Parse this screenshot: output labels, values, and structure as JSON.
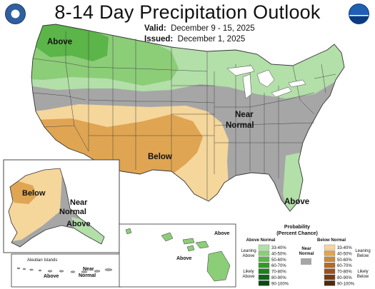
{
  "header": {
    "title": "8-14 Day Precipitation Outlook",
    "valid_label": "Valid:",
    "valid_value": "December 9 - 15, 2025",
    "issued_label": "Issued:",
    "issued_value": "December 1, 2025",
    "left_logo_icon": "doc-seal-icon",
    "right_logo_icon": "noaa-logo-icon"
  },
  "map_labels": {
    "contiguous": [
      "Above",
      "Below",
      "Near",
      "Normal",
      "Above"
    ],
    "alaska": [
      "Below",
      "Near",
      "Normal",
      "Above"
    ],
    "aleutian_title": "Aleutian Islands",
    "aleutian": [
      "Above",
      "Near",
      "Normal"
    ],
    "hawaii": [
      "Above",
      "Above"
    ]
  },
  "legend": {
    "title_line1": "Probability",
    "title_line2": "(Percent Chance)",
    "above_header": "Above Normal",
    "near_header_line1": "Near",
    "near_header_line2": "Normal",
    "below_header": "Below Normal",
    "leaning_above_line1": "Leaning",
    "leaning_above_line2": "Above",
    "likely_above_line1": "Likely",
    "likely_above_line2": "Above",
    "leaning_below_line1": "Leaning",
    "leaning_below_line2": "Below",
    "likely_below_line1": "Likely",
    "likely_below_line2": "Below",
    "above": [
      {
        "label": "33-40%",
        "color": "#b3dfa9"
      },
      {
        "label": "40-50%",
        "color": "#8ccd78"
      },
      {
        "label": "50-60%",
        "color": "#5bb548"
      },
      {
        "label": "60-70%",
        "color": "#2f9b26"
      },
      {
        "label": "70-80%",
        "color": "#1e7f1c"
      },
      {
        "label": "80-90%",
        "color": "#12621a"
      },
      {
        "label": "90-100%",
        "color": "#0b4a13"
      }
    ],
    "near_color": "#a6a6a6",
    "below": [
      {
        "label": "33-40%",
        "color": "#f5d69b"
      },
      {
        "label": "40-50%",
        "color": "#dfa552"
      },
      {
        "label": "50-60%",
        "color": "#c98a3d"
      },
      {
        "label": "60-70%",
        "color": "#b26b2a"
      },
      {
        "label": "70-80%",
        "color": "#95521f"
      },
      {
        "label": "80-90%",
        "color": "#733c17"
      },
      {
        "label": "90-100%",
        "color": "#4f2a10"
      }
    ]
  }
}
